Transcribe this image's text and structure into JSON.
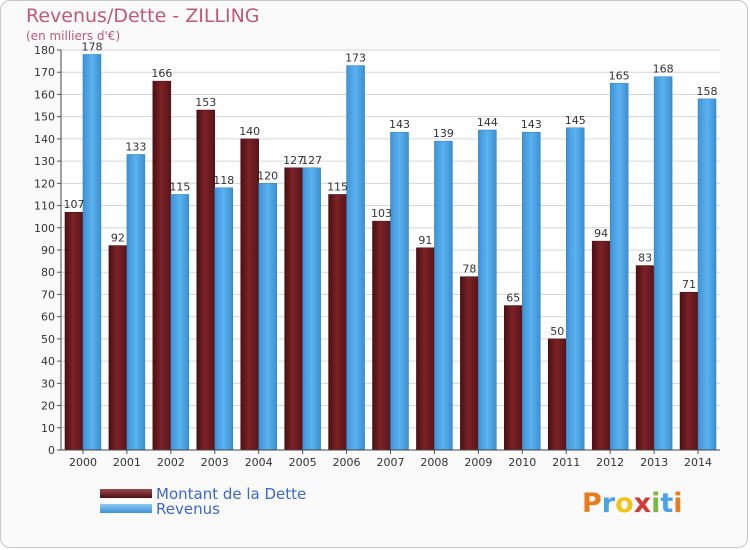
{
  "header": {
    "title": "Revenus/Dette - ZILLING",
    "subtitle": "(en milliers d'€)"
  },
  "chart_data": {
    "type": "bar",
    "categories": [
      "2000",
      "2001",
      "2002",
      "2003",
      "2004",
      "2005",
      "2006",
      "2007",
      "2008",
      "2009",
      "2010",
      "2011",
      "2012",
      "2013",
      "2014"
    ],
    "series": [
      {
        "name": "Montant de la Dette",
        "color": "#6b1a1e",
        "values": [
          107,
          92,
          166,
          153,
          140,
          127,
          115,
          103,
          91,
          78,
          65,
          50,
          94,
          83,
          71
        ]
      },
      {
        "name": "Revenus",
        "color": "#4aa3e4",
        "values": [
          178,
          133,
          115,
          118,
          120,
          127,
          173,
          143,
          139,
          144,
          143,
          145,
          165,
          168,
          158
        ]
      }
    ],
    "ylim": [
      0,
      180
    ],
    "ytick_step": 10,
    "grid": true,
    "legend": "bottom-left",
    "data_labels": true
  },
  "legend": {
    "items": [
      {
        "label": "Montant de la Dette",
        "color": "#6b1a1e"
      },
      {
        "label": "Revenus",
        "color": "#4aa3e4"
      }
    ]
  },
  "logo": {
    "letters": [
      "P",
      "r",
      "o",
      "x",
      "i",
      "t",
      "i"
    ],
    "colors": [
      "#e87b1e",
      "#4aa3e4",
      "#f0c419",
      "#d23a3a",
      "#7ab648",
      "#4aa3e4",
      "#e87b1e"
    ]
  }
}
